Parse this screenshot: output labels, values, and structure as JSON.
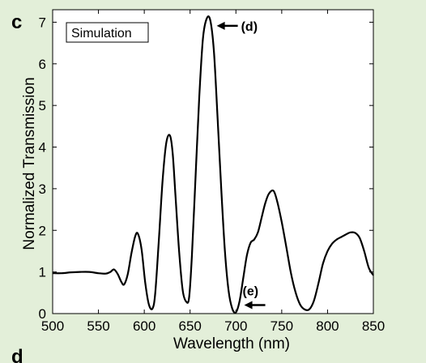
{
  "panel_label": "c",
  "next_panel_label": "d",
  "colors": {
    "background": "#e3efd9",
    "plot_area": "#ffffff",
    "line": "#000000"
  },
  "chart_data": {
    "type": "line",
    "legend_text": "Simulation",
    "xlabel": "Wavelength (nm)",
    "ylabel": "Normalized Transmission",
    "xlim": [
      500,
      850
    ],
    "ylim": [
      0,
      7.3
    ],
    "xticks": [
      500,
      550,
      600,
      650,
      700,
      750,
      800,
      850
    ],
    "yticks": [
      0,
      1,
      2,
      3,
      4,
      5,
      6,
      7
    ],
    "grid": false,
    "series": [
      {
        "x": [
          500,
          510,
          520,
          530,
          540,
          550,
          558,
          563,
          567,
          571,
          575,
          578,
          582,
          586,
          590,
          593,
          597,
          601,
          605,
          609,
          612,
          616,
          620,
          624,
          628,
          631,
          634,
          638,
          642,
          646,
          649,
          652,
          656,
          660,
          664,
          668,
          672,
          676,
          680,
          684,
          688,
          692,
          696,
          700,
          704,
          708,
          712,
          716,
          720,
          724,
          728,
          732,
          736,
          741,
          745,
          750,
          755,
          760,
          765,
          770,
          775,
          780,
          785,
          790,
          795,
          800,
          805,
          810,
          815,
          820,
          825,
          830,
          835,
          840,
          845,
          850
        ],
        "y": [
          0.97,
          0.97,
          0.99,
          1.0,
          1.0,
          0.97,
          0.96,
          1.0,
          1.06,
          0.95,
          0.76,
          0.7,
          0.95,
          1.45,
          1.85,
          1.92,
          1.55,
          0.75,
          0.22,
          0.12,
          0.5,
          1.8,
          3.2,
          4.1,
          4.28,
          3.85,
          2.85,
          1.5,
          0.55,
          0.28,
          0.4,
          1.4,
          3.3,
          5.2,
          6.6,
          7.08,
          7.05,
          6.3,
          4.7,
          3.0,
          1.5,
          0.55,
          0.12,
          0.03,
          0.3,
          0.85,
          1.4,
          1.7,
          1.78,
          1.95,
          2.3,
          2.65,
          2.88,
          2.95,
          2.7,
          2.2,
          1.6,
          0.98,
          0.52,
          0.22,
          0.1,
          0.1,
          0.3,
          0.72,
          1.2,
          1.5,
          1.68,
          1.78,
          1.84,
          1.9,
          1.95,
          1.94,
          1.82,
          1.5,
          1.1,
          0.92
        ]
      }
    ],
    "annotations": [
      {
        "text": "(d)",
        "x": 672,
        "y": 7.05
      },
      {
        "text": "(e)",
        "x": 702,
        "y": 0.03
      }
    ]
  }
}
